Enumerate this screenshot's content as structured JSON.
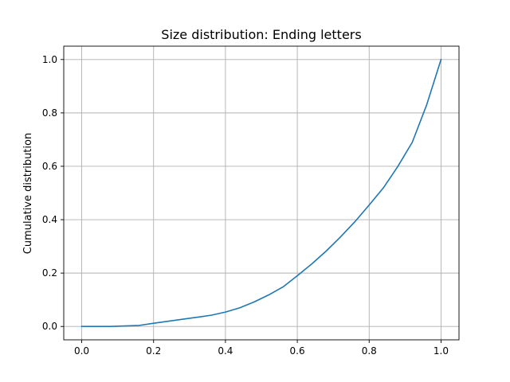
{
  "chart_data": {
    "type": "line",
    "title": "Size distribution: Ending letters",
    "xlabel": "",
    "ylabel": "Cumulative distribution",
    "xlim": [
      -0.05,
      1.05
    ],
    "ylim": [
      -0.05,
      1.05
    ],
    "xticks": [
      0.0,
      0.2,
      0.4,
      0.6,
      0.8,
      1.0
    ],
    "xtick_labels": [
      "0.0",
      "0.2",
      "0.4",
      "0.6",
      "0.8",
      "1.0"
    ],
    "yticks": [
      0.0,
      0.2,
      0.4,
      0.6,
      0.8,
      1.0
    ],
    "ytick_labels": [
      "0.0",
      "0.2",
      "0.4",
      "0.6",
      "0.8",
      "1.0"
    ],
    "grid": true,
    "series": [
      {
        "color": "#1f77b4",
        "x": [
          0.0,
          0.08,
          0.16,
          0.2,
          0.28,
          0.36,
          0.4,
          0.44,
          0.48,
          0.52,
          0.56,
          0.6,
          0.64,
          0.68,
          0.72,
          0.76,
          0.8,
          0.84,
          0.88,
          0.92,
          0.96,
          1.0
        ],
        "y": [
          0.0,
          0.0,
          0.004,
          0.012,
          0.027,
          0.042,
          0.054,
          0.07,
          0.092,
          0.118,
          0.148,
          0.19,
          0.234,
          0.282,
          0.335,
          0.392,
          0.455,
          0.52,
          0.6,
          0.69,
          0.83,
          1.0
        ]
      }
    ]
  }
}
